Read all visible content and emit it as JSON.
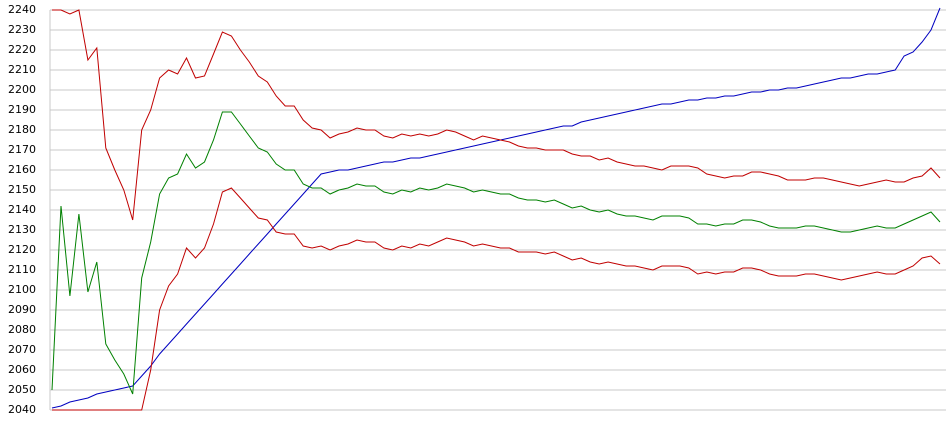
{
  "chart_data": {
    "type": "line",
    "series": [
      {
        "color": "#0000c0",
        "values": [
          2041,
          2042,
          2044,
          2045,
          2046,
          2048,
          2049,
          2050,
          2051,
          2052,
          2057,
          2062,
          2068,
          2073,
          2078,
          2083,
          2088,
          2093,
          2098,
          2103,
          2108,
          2113,
          2118,
          2123,
          2128,
          2133,
          2138,
          2143,
          2148,
          2153,
          2158,
          2159,
          2160,
          2160,
          2161,
          2162,
          2163,
          2164,
          2164,
          2165,
          2166,
          2166,
          2167,
          2168,
          2169,
          2170,
          2171,
          2172,
          2173,
          2174,
          2175,
          2176,
          2177,
          2178,
          2179,
          2180,
          2181,
          2182,
          2182,
          2184,
          2185,
          2186,
          2187,
          2188,
          2189,
          2190,
          2191,
          2192,
          2193,
          2193,
          2194,
          2195,
          2195,
          2196,
          2196,
          2197,
          2197,
          2198,
          2199,
          2199,
          2200,
          2200,
          2201,
          2201,
          2202,
          2203,
          2204,
          2205,
          2206,
          2206,
          2207,
          2208,
          2208,
          2209,
          2210,
          2217,
          2219,
          2224,
          2230,
          2241
        ]
      },
      {
        "color": "#c00000",
        "values": [
          2240,
          2240,
          2238,
          2240,
          2215,
          2221,
          2171,
          2160,
          2150,
          2135,
          2180,
          2190,
          2206,
          2210,
          2208,
          2216,
          2206,
          2207,
          2218,
          2229,
          2227,
          2220,
          2214,
          2207,
          2204,
          2197,
          2192,
          2192,
          2185,
          2181,
          2180,
          2176,
          2178,
          2179,
          2181,
          2180,
          2180,
          2177,
          2176,
          2178,
          2177,
          2178,
          2177,
          2178,
          2180,
          2179,
          2177,
          2175,
          2177,
          2176,
          2175,
          2174,
          2172,
          2171,
          2171,
          2170,
          2170,
          2170,
          2168,
          2167,
          2167,
          2165,
          2166,
          2164,
          2163,
          2162,
          2162,
          2161,
          2160,
          2162,
          2162,
          2162,
          2161,
          2158,
          2157,
          2156,
          2157,
          2157,
          2159,
          2159,
          2158,
          2157,
          2155,
          2155,
          2155,
          2156,
          2156,
          2155,
          2154,
          2153,
          2152,
          2153,
          2154,
          2155,
          2154,
          2154,
          2156,
          2157,
          2161,
          2156
        ]
      },
      {
        "color": "#008000",
        "values": [
          2050,
          2142,
          2097,
          2138,
          2099,
          2114,
          2073,
          2065,
          2058,
          2048,
          2106,
          2124,
          2148,
          2156,
          2158,
          2168,
          2161,
          2164,
          2175,
          2189,
          2189,
          2183,
          2177,
          2171,
          2169,
          2163,
          2160,
          2160,
          2153,
          2151,
          2151,
          2148,
          2150,
          2151,
          2153,
          2152,
          2152,
          2149,
          2148,
          2150,
          2149,
          2151,
          2150,
          2151,
          2153,
          2152,
          2151,
          2149,
          2150,
          2149,
          2148,
          2148,
          2146,
          2145,
          2145,
          2144,
          2145,
          2143,
          2141,
          2142,
          2140,
          2139,
          2140,
          2138,
          2137,
          2137,
          2136,
          2135,
          2137,
          2137,
          2137,
          2136,
          2133,
          2133,
          2132,
          2133,
          2133,
          2135,
          2135,
          2134,
          2132,
          2131,
          2131,
          2131,
          2132,
          2132,
          2131,
          2130,
          2129,
          2129,
          2130,
          2131,
          2132,
          2131,
          2131,
          2133,
          2135,
          2137,
          2139,
          2134
        ]
      },
      {
        "color": "#c00000",
        "values": [
          2040,
          2040,
          2040,
          2040,
          2040,
          2040,
          2040,
          2040,
          2040,
          2040,
          2040,
          2060,
          2090,
          2102,
          2108,
          2121,
          2116,
          2121,
          2133,
          2149,
          2151,
          2146,
          2141,
          2136,
          2135,
          2129,
          2128,
          2128,
          2122,
          2121,
          2122,
          2120,
          2122,
          2123,
          2125,
          2124,
          2124,
          2121,
          2120,
          2122,
          2121,
          2123,
          2122,
          2124,
          2126,
          2125,
          2124,
          2122,
          2123,
          2122,
          2121,
          2121,
          2119,
          2119,
          2119,
          2118,
          2119,
          2117,
          2115,
          2116,
          2114,
          2113,
          2114,
          2113,
          2112,
          2112,
          2111,
          2110,
          2112,
          2112,
          2112,
          2111,
          2108,
          2109,
          2108,
          2109,
          2109,
          2111,
          2111,
          2110,
          2108,
          2107,
          2107,
          2107,
          2108,
          2108,
          2107,
          2106,
          2105,
          2106,
          2107,
          2108,
          2109,
          2108,
          2108,
          2110,
          2112,
          2116,
          2117,
          2113
        ]
      }
    ],
    "ylim": [
      2040,
      2240
    ],
    "yticks": [
      2040,
      2050,
      2060,
      2070,
      2080,
      2090,
      2100,
      2110,
      2120,
      2130,
      2140,
      2150,
      2160,
      2170,
      2180,
      2190,
      2200,
      2210,
      2220,
      2230,
      2240
    ],
    "grid": true
  }
}
